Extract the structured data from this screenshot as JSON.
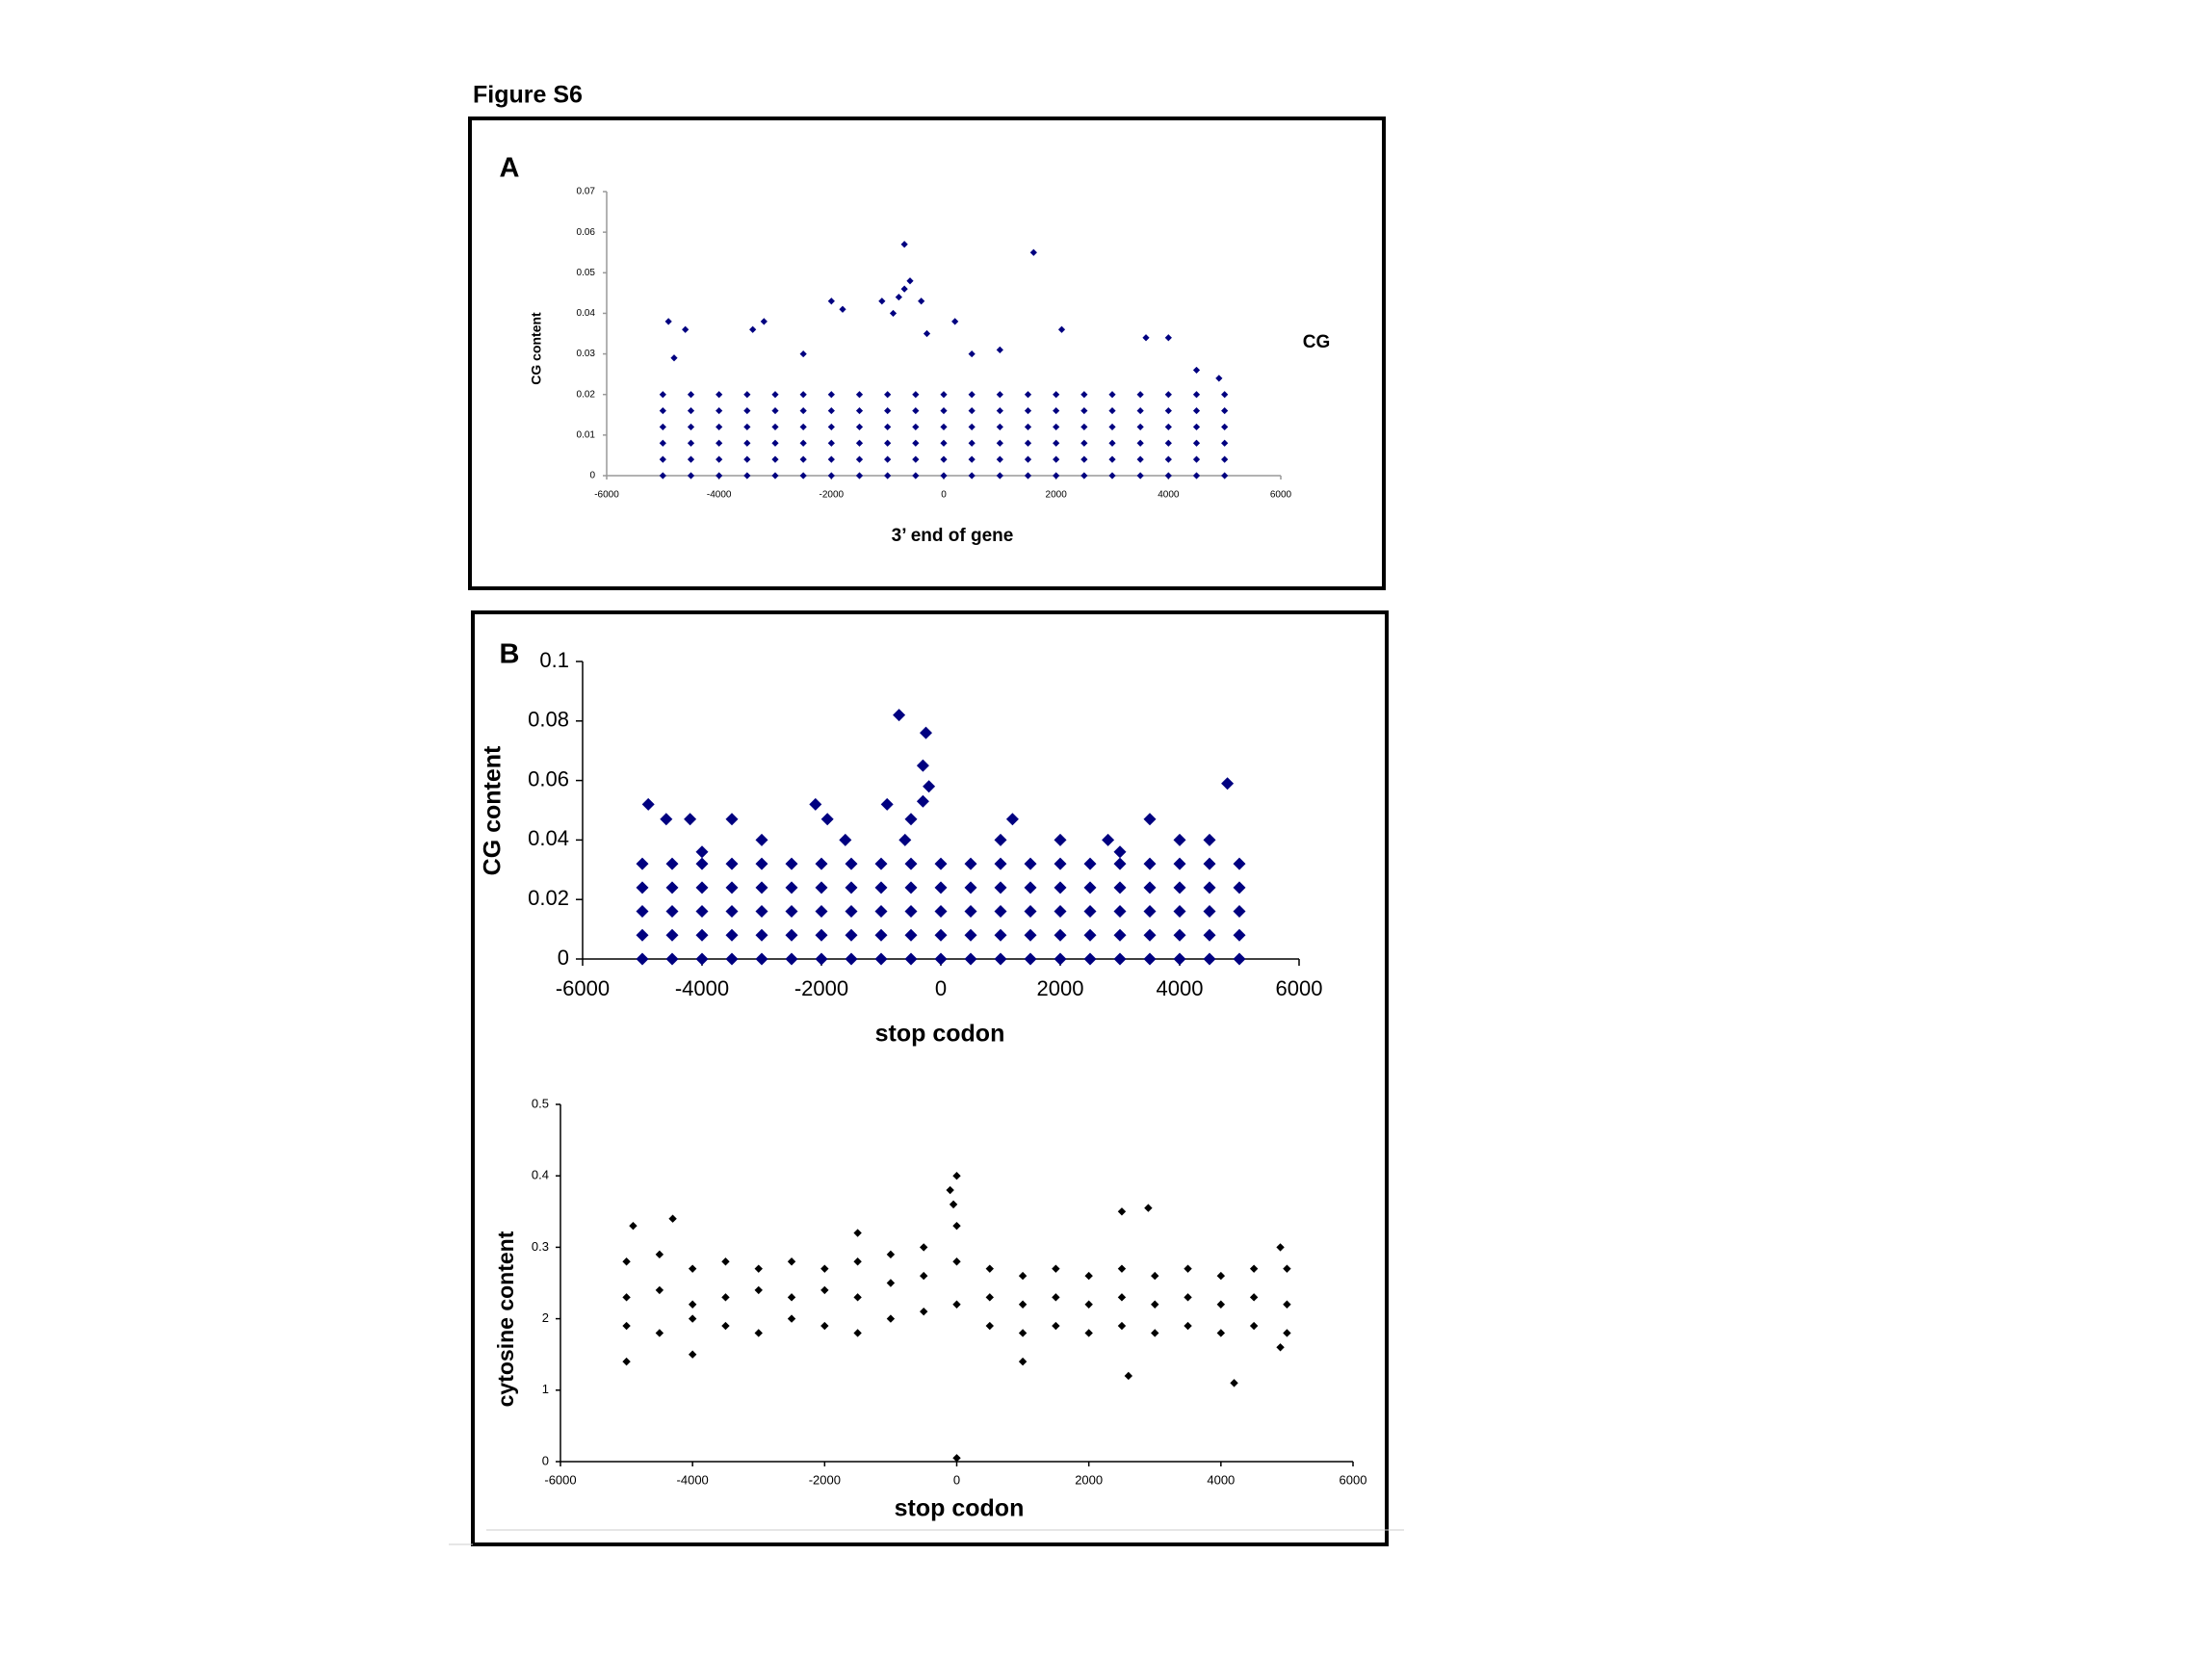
{
  "title": "Figure S6",
  "chart_data": [
    {
      "type": "scatter",
      "panel": "A",
      "ylabel": "CG content",
      "xlabel": "3’ end of gene",
      "xlim": [
        -6000,
        6000
      ],
      "xticks": [
        -6000,
        -4000,
        -2000,
        0,
        2000,
        4000,
        6000
      ],
      "ylim": [
        0,
        0.07
      ],
      "yticks": [
        0,
        0.01,
        0.02,
        0.03,
        0.04,
        0.05,
        0.06,
        0.07
      ],
      "x": [
        -5000,
        -4500,
        -4000,
        -3500,
        -3000,
        -2500,
        -2000,
        -1500,
        -1000,
        -500,
        0,
        500,
        1000,
        1500,
        2000,
        2500,
        3000,
        3500,
        4000,
        4500,
        5000,
        -5000,
        -4500,
        -4000,
        -3500,
        -3000,
        -2500,
        -2000,
        -1500,
        -1000,
        -500,
        0,
        500,
        1000,
        1500,
        2000,
        2500,
        3000,
        3500,
        4000,
        4500,
        5000,
        -5000,
        -4500,
        -4000,
        -3500,
        -3000,
        -2500,
        -2000,
        -1500,
        -1000,
        -500,
        0,
        500,
        1000,
        1500,
        2000,
        2500,
        3000,
        3500,
        4000,
        4500,
        5000,
        -5000,
        -4500,
        -4000,
        -3500,
        -3000,
        -2500,
        -2000,
        -1500,
        -1000,
        -500,
        0,
        500,
        1000,
        1500,
        2000,
        2500,
        3000,
        3500,
        4000,
        4500,
        5000,
        -5000,
        -4500,
        -4000,
        -3500,
        -3000,
        -2500,
        -2000,
        -1500,
        -1000,
        -500,
        0,
        500,
        1000,
        1500,
        2000,
        2500,
        3000,
        3500,
        4000,
        4500,
        5000,
        -5000,
        -4500,
        -4000,
        -3500,
        -3000,
        -2500,
        -2000,
        -1500,
        -1000,
        -500,
        0,
        500,
        1000,
        1500,
        2000,
        2500,
        3000,
        3500,
        4000,
        4500,
        5000,
        -4900,
        -4600,
        -3400,
        -3200,
        -2000,
        -1800,
        -1100,
        -900,
        -800,
        -700,
        -600,
        -700,
        -400,
        200,
        1600,
        2100,
        3600,
        4000,
        4900,
        -4800,
        4500,
        -2500,
        500,
        1000,
        -300
      ],
      "series": [
        {
          "name": "CG",
          "color": "#000080",
          "values": [
            0,
            0,
            0,
            0,
            0,
            0,
            0,
            0,
            0,
            0,
            0,
            0,
            0,
            0,
            0,
            0,
            0,
            0,
            0,
            0,
            0,
            0.004,
            0.004,
            0.004,
            0.004,
            0.004,
            0.004,
            0.004,
            0.004,
            0.004,
            0.004,
            0.004,
            0.004,
            0.004,
            0.004,
            0.004,
            0.004,
            0.004,
            0.004,
            0.004,
            0.004,
            0.004,
            0.008,
            0.008,
            0.008,
            0.008,
            0.008,
            0.008,
            0.008,
            0.008,
            0.008,
            0.008,
            0.008,
            0.008,
            0.008,
            0.008,
            0.008,
            0.008,
            0.008,
            0.008,
            0.008,
            0.008,
            0.008,
            0.012,
            0.012,
            0.012,
            0.012,
            0.012,
            0.012,
            0.012,
            0.012,
            0.012,
            0.012,
            0.012,
            0.012,
            0.012,
            0.012,
            0.012,
            0.012,
            0.012,
            0.012,
            0.012,
            0.012,
            0.012,
            0.016,
            0.016,
            0.016,
            0.016,
            0.016,
            0.016,
            0.016,
            0.016,
            0.016,
            0.016,
            0.016,
            0.016,
            0.016,
            0.016,
            0.016,
            0.016,
            0.016,
            0.016,
            0.016,
            0.016,
            0.016,
            0.02,
            0.02,
            0.02,
            0.02,
            0.02,
            0.02,
            0.02,
            0.02,
            0.02,
            0.02,
            0.02,
            0.02,
            0.02,
            0.02,
            0.02,
            0.02,
            0.02,
            0.02,
            0.02,
            0.02,
            0.02,
            0.038,
            0.036,
            0.036,
            0.038,
            0.043,
            0.041,
            0.043,
            0.04,
            0.044,
            0.046,
            0.048,
            0.057,
            0.043,
            0.038,
            0.055,
            0.036,
            0.034,
            0.034,
            0.024,
            0.029,
            0.026,
            0.03,
            0.03,
            0.031,
            0.035
          ]
        }
      ]
    },
    {
      "type": "scatter",
      "panel": "B",
      "ylabel": "CG content",
      "xlabel": "stop codon",
      "xlim": [
        -6000,
        6000
      ],
      "xticks": [
        -6000,
        -4000,
        -2000,
        0,
        2000,
        4000,
        6000
      ],
      "ylim": [
        0,
        0.1
      ],
      "yticks": [
        0,
        0.02,
        0.04,
        0.06,
        0.08,
        0.1
      ],
      "x": [
        -5000,
        -4500,
        -4000,
        -3500,
        -3000,
        -2500,
        -2000,
        -1500,
        -1000,
        -500,
        0,
        500,
        1000,
        1500,
        2000,
        2500,
        3000,
        3500,
        4000,
        4500,
        5000,
        -5000,
        -4500,
        -4000,
        -3500,
        -3000,
        -2500,
        -2000,
        -1500,
        -1000,
        -500,
        0,
        500,
        1000,
        1500,
        2000,
        2500,
        3000,
        3500,
        4000,
        4500,
        5000,
        -5000,
        -4500,
        -4000,
        -3500,
        -3000,
        -2500,
        -2000,
        -1500,
        -1000,
        -500,
        0,
        500,
        1000,
        1500,
        2000,
        2500,
        3000,
        3500,
        4000,
        4500,
        5000,
        -5000,
        -4500,
        -4000,
        -3500,
        -3000,
        -2500,
        -2000,
        -1500,
        -1000,
        -500,
        0,
        500,
        1000,
        1500,
        2000,
        2500,
        3000,
        3500,
        4000,
        4500,
        5000,
        -5000,
        -4500,
        -4000,
        -3500,
        -3000,
        -2500,
        -2000,
        -1500,
        -1000,
        -500,
        0,
        500,
        1000,
        1500,
        2000,
        2500,
        3000,
        3500,
        4000,
        4500,
        5000,
        -4900,
        -4600,
        -4200,
        -3500,
        -2100,
        -1900,
        -1600,
        -900,
        -700,
        -500,
        -300,
        -250,
        -200,
        -300,
        -600,
        1200,
        1000,
        2000,
        2800,
        3500,
        4000,
        4800,
        4500,
        -3000,
        3000,
        -4000
      ],
      "series": [
        {
          "color": "#000080",
          "values": [
            0,
            0,
            0,
            0,
            0,
            0,
            0,
            0,
            0,
            0,
            0,
            0,
            0,
            0,
            0,
            0,
            0,
            0,
            0,
            0,
            0,
            0.008,
            0.008,
            0.008,
            0.008,
            0.008,
            0.008,
            0.008,
            0.008,
            0.008,
            0.008,
            0.008,
            0.008,
            0.008,
            0.008,
            0.008,
            0.008,
            0.008,
            0.008,
            0.008,
            0.008,
            0.008,
            0.016,
            0.016,
            0.016,
            0.016,
            0.016,
            0.016,
            0.016,
            0.016,
            0.016,
            0.016,
            0.016,
            0.016,
            0.016,
            0.016,
            0.016,
            0.016,
            0.016,
            0.016,
            0.016,
            0.016,
            0.016,
            0.024,
            0.024,
            0.024,
            0.024,
            0.024,
            0.024,
            0.024,
            0.024,
            0.024,
            0.024,
            0.024,
            0.024,
            0.024,
            0.024,
            0.024,
            0.024,
            0.024,
            0.024,
            0.024,
            0.024,
            0.024,
            0.032,
            0.032,
            0.032,
            0.032,
            0.032,
            0.032,
            0.032,
            0.032,
            0.032,
            0.032,
            0.032,
            0.032,
            0.032,
            0.032,
            0.032,
            0.032,
            0.032,
            0.032,
            0.032,
            0.032,
            0.032,
            0.052,
            0.047,
            0.047,
            0.047,
            0.052,
            0.047,
            0.04,
            0.052,
            0.082,
            0.047,
            0.065,
            0.076,
            0.058,
            0.053,
            0.04,
            0.047,
            0.04,
            0.04,
            0.04,
            0.047,
            0.04,
            0.059,
            0.04,
            0.04,
            0.036,
            0.036
          ]
        }
      ]
    },
    {
      "type": "scatter",
      "ylabel": "cytosine  content",
      "xlabel": "stop codon",
      "xlim": [
        -6000,
        6000
      ],
      "xticks": [
        -6000,
        -4000,
        -2000,
        0,
        2000,
        4000,
        6000
      ],
      "ylim": [
        0,
        0.5
      ],
      "yticks": [
        0,
        {
          "value": 0.1,
          "label": "1"
        },
        {
          "value": 0.2,
          "label": "2"
        },
        0.3,
        0.4,
        0.5
      ],
      "x": [
        -5000,
        -4500,
        -4000,
        -3500,
        -3000,
        -2500,
        -2000,
        -1500,
        -1000,
        -500,
        0,
        500,
        1000,
        1500,
        2000,
        2500,
        3000,
        3500,
        4000,
        4500,
        5000,
        -5000,
        -4500,
        -4000,
        -3500,
        -3000,
        -2500,
        -2000,
        -1500,
        -1000,
        -500,
        0,
        500,
        1000,
        1500,
        2000,
        2500,
        3000,
        3500,
        4000,
        4500,
        5000,
        -5000,
        -4500,
        -4000,
        -3500,
        -3000,
        -2500,
        -2000,
        -1500,
        -1000,
        -500,
        0,
        500,
        1000,
        1500,
        2000,
        2500,
        3000,
        3500,
        4000,
        4500,
        5000,
        -100,
        0,
        -50,
        0,
        2900,
        2500,
        4200,
        -4900,
        -4300,
        -5000,
        -4000,
        1000,
        2600,
        -1500,
        4900,
        4900
      ],
      "series": [
        {
          "color": "#000000",
          "values": [
            0.19,
            0.18,
            0.2,
            0.19,
            0.18,
            0.2,
            0.19,
            0.18,
            0.2,
            0.21,
            0.22,
            0.19,
            0.18,
            0.19,
            0.18,
            0.19,
            0.18,
            0.19,
            0.18,
            0.19,
            0.18,
            0.23,
            0.24,
            0.22,
            0.23,
            0.24,
            0.23,
            0.24,
            0.23,
            0.25,
            0.26,
            0.28,
            0.23,
            0.22,
            0.23,
            0.22,
            0.23,
            0.22,
            0.23,
            0.22,
            0.23,
            0.22,
            0.28,
            0.29,
            0.27,
            0.28,
            0.27,
            0.28,
            0.27,
            0.28,
            0.29,
            0.3,
            0.33,
            0.27,
            0.26,
            0.27,
            0.26,
            0.27,
            0.26,
            0.27,
            0.26,
            0.27,
            0.27,
            0.38,
            0.4,
            0.36,
            0.005,
            0.355,
            0.35,
            0.11,
            0.33,
            0.34,
            0.14,
            0.15,
            0.14,
            0.12,
            0.32,
            0.3,
            0.16
          ]
        }
      ]
    }
  ]
}
